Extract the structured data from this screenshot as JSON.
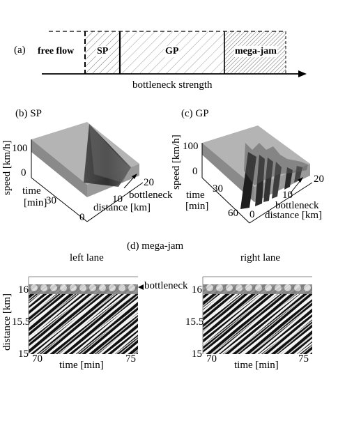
{
  "panel_a": {
    "label": "(a)",
    "regimes": [
      "free flow",
      "SP",
      "GP",
      "mega-jam"
    ],
    "axis_label": "bottleneck strength"
  },
  "panel_b": {
    "label": "(b) SP",
    "ylabel": "speed [km/h]",
    "speed_tick": "100",
    "zero_tick": "0",
    "time_label": "time",
    "time_unit": "[min]",
    "time_tick_30": "30",
    "time_tick_0": "0",
    "dist_tick_20": "20",
    "dist_tick_10": "10",
    "bottleneck_label": "bottleneck",
    "distance_label": "distance [km]"
  },
  "panel_c": {
    "label": "(c)  GP",
    "ylabel": "speed [km/h]",
    "speed_tick": "100",
    "zero_tick": "0",
    "time_label": "time",
    "time_unit": "[min]",
    "time_tick_30": "30",
    "time_tick_60": "60",
    "dist_tick_0": "0",
    "dist_tick_20": "20",
    "dist_tick_10": "10",
    "bottleneck_label": "bottleneck",
    "distance_label": "distance [km]"
  },
  "panel_d": {
    "title": "(d)  mega-jam",
    "left_title": "left lane",
    "right_title": "right lane",
    "ylabel": "distance [km]",
    "yticks": [
      "16",
      "15.5",
      "15"
    ],
    "xticks": [
      "70",
      "75"
    ],
    "xlabel": "time [min]",
    "bottleneck_label": "bottleneck"
  },
  "colors": {
    "surface_top": "#b4b4b4",
    "surface_side": "#7a7a7a",
    "jam_dark": "#1a1a1a"
  }
}
